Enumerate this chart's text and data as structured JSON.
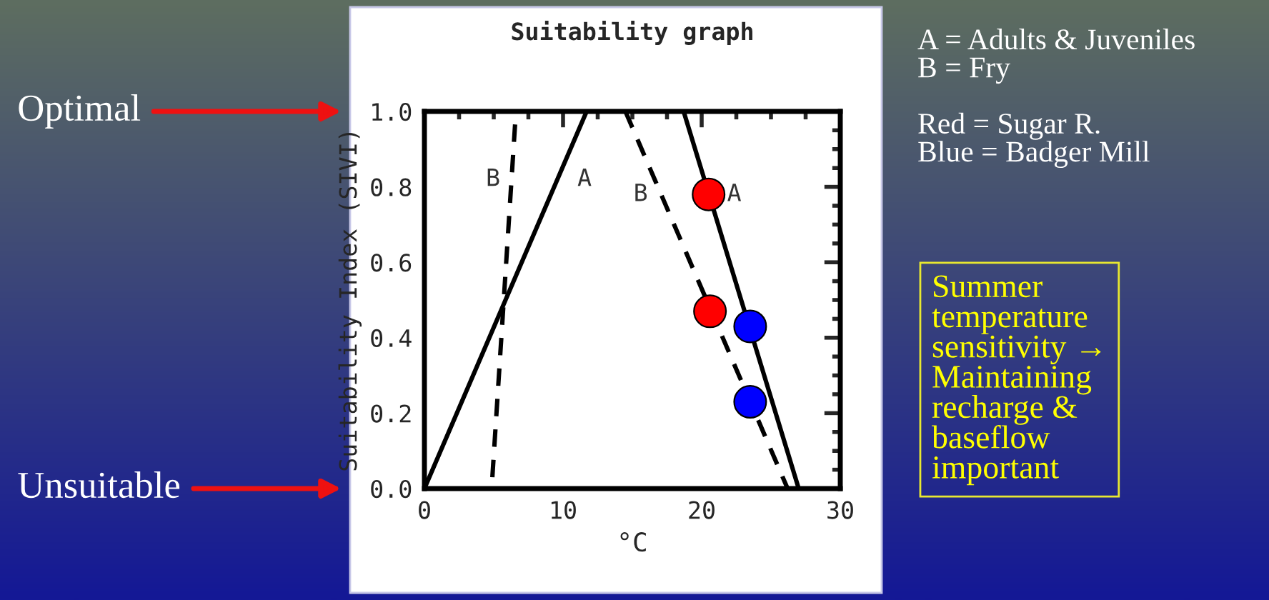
{
  "chart_data": {
    "type": "line",
    "title": "Suitability graph",
    "xlabel": "°C",
    "ylabel": "Suitability Index (SIVI)",
    "xlim": [
      0,
      30
    ],
    "xticks": [
      0,
      10,
      20,
      30
    ],
    "ylim": [
      0,
      1
    ],
    "yticks": [
      {
        "value": 0,
        "label": "0.0"
      },
      {
        "value": 0.2,
        "label": "0.2"
      },
      {
        "value": 0.4,
        "label": "0.4"
      },
      {
        "value": 0.6,
        "label": "0.6"
      },
      {
        "value": 0.8,
        "label": "0.8"
      },
      {
        "value": 1,
        "label": "1.0"
      }
    ],
    "grid": false,
    "legend": false,
    "series": [
      {
        "color": "#000000",
        "line_style": "solid",
        "x": [
          0,
          11.7,
          18.7,
          27,
          30
        ],
        "values": [
          0,
          1,
          1,
          0,
          0
        ]
      },
      {
        "color": "#000000",
        "line_style": "dashed",
        "x": [
          4.9,
          6.6
        ],
        "values": [
          0.03,
          1
        ]
      },
      {
        "color": "#000000",
        "line_style": "dashed",
        "x": [
          14.5,
          26.2
        ],
        "values": [
          1,
          0
        ]
      },
      {
        "type": "scatter",
        "marker": "circle",
        "x": [
          20.5,
          20.6,
          23.5,
          23.5
        ],
        "values": [
          0.78,
          0.47,
          0.43,
          0.23
        ],
        "colors": [
          "#ff0000",
          "#ff0000",
          "#0000ff",
          "#0000ff"
        ]
      }
    ],
    "annotations": [
      "B",
      "A",
      "B",
      "A",
      "Optimal",
      "Unsuitable",
      "A = Adults & Juveniles\nB = Fry\n\nRed = Sugar R.\nBlue = Badger Mill",
      "Summer\ntemperature\nsensitivity →\nMaintaining\nrecharge &\nbaseflow\nimportant"
    ]
  }
}
